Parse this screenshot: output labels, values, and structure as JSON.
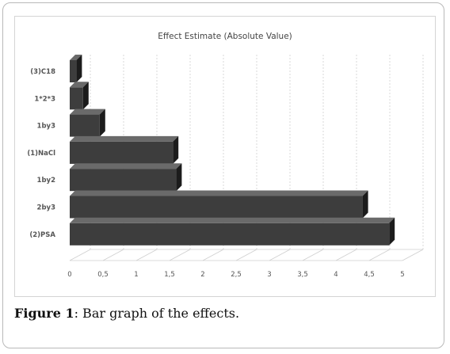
{
  "chart_data": {
    "type": "bar",
    "orientation": "horizontal",
    "title": "Effect Estimate (Absolute Value)",
    "categories": [
      "(3)C18",
      "1*2*3",
      "1by3",
      "(1)NaCl",
      "1by2",
      "2by3",
      "(2)PSA"
    ],
    "values": [
      0.1,
      0.2,
      0.45,
      1.55,
      1.6,
      4.4,
      4.8
    ],
    "xlim": [
      0,
      5
    ],
    "xticks": [
      "0",
      "0,5",
      "1",
      "1,5",
      "2",
      "2,5",
      "3",
      "3,5",
      "4",
      "4,5",
      "5"
    ],
    "xlabel": "",
    "ylabel": "",
    "grid": "vertical",
    "legend": "none",
    "bar_color": "#3d3d3d",
    "bar_top_color": "#6a6a6a",
    "bar_side_color": "#1c1c1c"
  },
  "caption": {
    "label": "Figure 1",
    "text": ": Bar graph of the effects."
  }
}
